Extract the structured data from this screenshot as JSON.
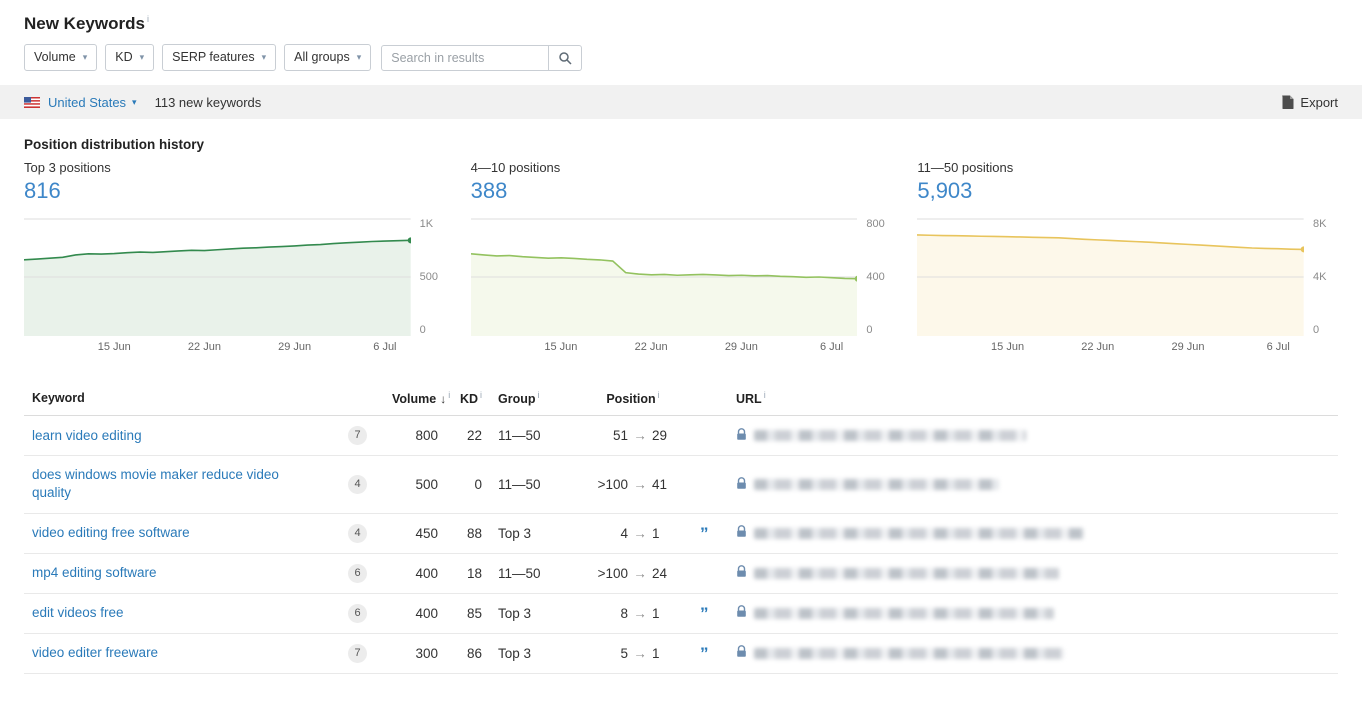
{
  "colors": {
    "link_blue": "#2a7ab9",
    "metric_blue": "#3e87c9",
    "bar_bg": "#f1f1f1"
  },
  "icons": {
    "info": "i",
    "caret_down": "▾",
    "sort_desc": "↓",
    "arrow_right": "→",
    "quote": "”"
  },
  "page": {
    "title": "New Keywords"
  },
  "filters": {
    "volume_label": "Volume",
    "kd_label": "KD",
    "serp_label": "SERP features",
    "groups_label": "All groups",
    "search_placeholder": "Search in results"
  },
  "toolbar": {
    "country": "United States",
    "new_keywords_count": "113 new keywords",
    "export_label": "Export"
  },
  "section_title": "Position distribution history",
  "chart_data": {
    "type": "area",
    "x": [
      "8 Jun",
      "9 Jun",
      "10 Jun",
      "11 Jun",
      "12 Jun",
      "13 Jun",
      "14 Jun",
      "15 Jun",
      "16 Jun",
      "17 Jun",
      "18 Jun",
      "19 Jun",
      "20 Jun",
      "21 Jun",
      "22 Jun",
      "23 Jun",
      "24 Jun",
      "25 Jun",
      "26 Jun",
      "27 Jun",
      "28 Jun",
      "29 Jun",
      "30 Jun",
      "1 Jul",
      "2 Jul",
      "3 Jul",
      "4 Jul",
      "5 Jul",
      "6 Jul",
      "7 Jul",
      "8 Jul"
    ],
    "xticks": [
      "15 Jun",
      "22 Jun",
      "29 Jun",
      "6 Jul"
    ],
    "grid": true,
    "legend": false,
    "charts": [
      {
        "title": "Top 3 positions",
        "total": "816",
        "values": [
          648,
          655,
          662,
          670,
          690,
          700,
          698,
          702,
          710,
          715,
          712,
          718,
          725,
          730,
          728,
          735,
          742,
          748,
          752,
          758,
          762,
          768,
          775,
          780,
          788,
          795,
          800,
          806,
          810,
          813,
          816
        ],
        "ylim": [
          0,
          1000
        ],
        "yticks": [
          "1K",
          "500",
          "0"
        ],
        "line_color": "#338a4e",
        "fill_color": "#e9f2ea"
      },
      {
        "title": "4—10 positions",
        "total": "388",
        "values": [
          560,
          552,
          545,
          548,
          540,
          535,
          530,
          532,
          528,
          522,
          518,
          510,
          430,
          420,
          415,
          418,
          412,
          415,
          418,
          414,
          410,
          412,
          408,
          410,
          405,
          402,
          398,
          400,
          395,
          390,
          388
        ],
        "ylim": [
          0,
          800
        ],
        "yticks": [
          "800",
          "400",
          "0"
        ],
        "line_color": "#93c25f",
        "fill_color": "#f5f9ec"
      },
      {
        "title": "11—50 positions",
        "total": "5,903",
        "values": [
          6900,
          6880,
          6860,
          6850,
          6830,
          6810,
          6800,
          6780,
          6760,
          6740,
          6720,
          6700,
          6650,
          6600,
          6560,
          6520,
          6480,
          6440,
          6400,
          6350,
          6300,
          6250,
          6200,
          6150,
          6100,
          6050,
          6000,
          5970,
          5950,
          5920,
          5903
        ],
        "ylim": [
          0,
          8000
        ],
        "yticks": [
          "8K",
          "4K",
          "0"
        ],
        "line_color": "#e8c45c",
        "fill_color": "#fdf8ea"
      }
    ]
  },
  "table": {
    "headers": {
      "keyword": "Keyword",
      "volume": "Volume",
      "kd": "KD",
      "group": "Group",
      "position": "Position",
      "url": "URL"
    },
    "rows": [
      {
        "keyword": "learn video editing",
        "words": "7",
        "volume": "800",
        "kd": "22",
        "group": "11—50",
        "pos_from": "51",
        "pos_to": "29",
        "quote": false,
        "url_width": 272
      },
      {
        "keyword": "does windows movie maker reduce video quality",
        "words": "4",
        "volume": "500",
        "kd": "0",
        "group": "11—50",
        "pos_from": ">100",
        "pos_to": "41",
        "quote": false,
        "url_width": 245
      },
      {
        "keyword": "video editing free software",
        "words": "4",
        "volume": "450",
        "kd": "88",
        "group": "Top 3",
        "pos_from": "4",
        "pos_to": "1",
        "quote": true,
        "url_width": 330
      },
      {
        "keyword": "mp4 editing software",
        "words": "6",
        "volume": "400",
        "kd": "18",
        "group": "11—50",
        "pos_from": ">100",
        "pos_to": "24",
        "quote": false,
        "url_width": 305
      },
      {
        "keyword": "edit videos free",
        "words": "6",
        "volume": "400",
        "kd": "85",
        "group": "Top 3",
        "pos_from": "8",
        "pos_to": "1",
        "quote": true,
        "url_width": 300
      },
      {
        "keyword": "video editer freeware",
        "words": "7",
        "volume": "300",
        "kd": "86",
        "group": "Top 3",
        "pos_from": "5",
        "pos_to": "1",
        "quote": true,
        "url_width": 310
      }
    ]
  }
}
